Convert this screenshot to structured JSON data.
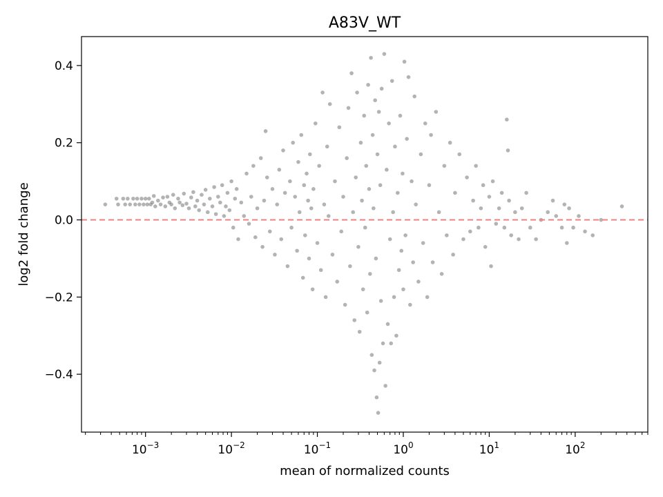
{
  "chart_data": {
    "type": "scatter",
    "title": "A83V_WT",
    "xlabel": "mean of normalized counts",
    "ylabel": "log2 fold change",
    "xscale": "log",
    "xlim": [
      0.00018,
      700
    ],
    "ylim": [
      -0.55,
      0.475
    ],
    "x_ticks": [
      {
        "value": 0.001,
        "base": "10",
        "exp": "−3"
      },
      {
        "value": 0.01,
        "base": "10",
        "exp": "−2"
      },
      {
        "value": 0.1,
        "base": "10",
        "exp": "−1"
      },
      {
        "value": 1,
        "base": "10",
        "exp": "0"
      },
      {
        "value": 10,
        "base": "10",
        "exp": "1"
      },
      {
        "value": 100,
        "base": "10",
        "exp": "2"
      }
    ],
    "y_ticks": [
      {
        "value": 0.4,
        "label": "0.4"
      },
      {
        "value": 0.2,
        "label": "0.2"
      },
      {
        "value": 0.0,
        "label": "0.0"
      },
      {
        "value": -0.2,
        "label": "−0.2"
      },
      {
        "value": -0.4,
        "label": "−0.4"
      }
    ],
    "reference_line": {
      "y": 0,
      "style": "dashed",
      "color": "#f08080"
    },
    "grid": false,
    "legend": "none",
    "point_color": "#808080",
    "point_opacity": 0.6,
    "points": [
      [
        0.00034,
        0.04
      ],
      [
        0.00046,
        0.055
      ],
      [
        0.00048,
        0.04
      ],
      [
        0.00055,
        0.055
      ],
      [
        0.00058,
        0.04
      ],
      [
        0.00062,
        0.055
      ],
      [
        0.00066,
        0.04
      ],
      [
        0.00072,
        0.055
      ],
      [
        0.00076,
        0.04
      ],
      [
        0.0008,
        0.055
      ],
      [
        0.00085,
        0.04
      ],
      [
        0.0009,
        0.055
      ],
      [
        0.00095,
        0.04
      ],
      [
        0.001,
        0.055
      ],
      [
        0.00105,
        0.04
      ],
      [
        0.0011,
        0.055
      ],
      [
        0.00115,
        0.04
      ],
      [
        0.0012,
        0.045
      ],
      [
        0.00125,
        0.062
      ],
      [
        0.0013,
        0.035
      ],
      [
        0.0014,
        0.05
      ],
      [
        0.0015,
        0.04
      ],
      [
        0.0016,
        0.058
      ],
      [
        0.0017,
        0.035
      ],
      [
        0.0018,
        0.06
      ],
      [
        0.0019,
        0.045
      ],
      [
        0.002,
        0.04
      ],
      [
        0.0021,
        0.065
      ],
      [
        0.0022,
        0.03
      ],
      [
        0.0024,
        0.055
      ],
      [
        0.0025,
        0.045
      ],
      [
        0.0027,
        0.038
      ],
      [
        0.0028,
        0.068
      ],
      [
        0.003,
        0.042
      ],
      [
        0.0032,
        0.03
      ],
      [
        0.0034,
        0.058
      ],
      [
        0.0036,
        0.072
      ],
      [
        0.0038,
        0.035
      ],
      [
        0.004,
        0.05
      ],
      [
        0.0042,
        0.025
      ],
      [
        0.0045,
        0.065
      ],
      [
        0.0048,
        0.04
      ],
      [
        0.005,
        0.078
      ],
      [
        0.0053,
        0.02
      ],
      [
        0.0056,
        0.055
      ],
      [
        0.006,
        0.035
      ],
      [
        0.0063,
        0.085
      ],
      [
        0.0066,
        0.015
      ],
      [
        0.007,
        0.06
      ],
      [
        0.0074,
        0.045
      ],
      [
        0.0078,
        0.09
      ],
      [
        0.0082,
        0.01
      ],
      [
        0.0086,
        0.035
      ],
      [
        0.009,
        0.07
      ],
      [
        0.0095,
        0.025
      ],
      [
        0.01,
        0.1
      ],
      [
        0.0105,
        -0.02
      ],
      [
        0.011,
        0.055
      ],
      [
        0.0115,
        0.08
      ],
      [
        0.012,
        -0.05
      ],
      [
        0.013,
        0.045
      ],
      [
        0.014,
        0.01
      ],
      [
        0.015,
        0.12
      ],
      [
        0.016,
        -0.01
      ],
      [
        0.017,
        0.06
      ],
      [
        0.018,
        0.14
      ],
      [
        0.019,
        -0.045
      ],
      [
        0.02,
        0.03
      ],
      [
        0.022,
        0.16
      ],
      [
        0.023,
        -0.07
      ],
      [
        0.024,
        0.05
      ],
      [
        0.025,
        0.23
      ],
      [
        0.026,
        0.11
      ],
      [
        0.028,
        -0.03
      ],
      [
        0.03,
        0.08
      ],
      [
        0.032,
        -0.09
      ],
      [
        0.034,
        0.04
      ],
      [
        0.036,
        0.13
      ],
      [
        0.038,
        -0.05
      ],
      [
        0.04,
        0.18
      ],
      [
        0.042,
        0.07
      ],
      [
        0.045,
        -0.12
      ],
      [
        0.048,
        0.1
      ],
      [
        0.05,
        -0.02
      ],
      [
        0.052,
        0.2
      ],
      [
        0.055,
        0.06
      ],
      [
        0.058,
        -0.08
      ],
      [
        0.06,
        0.15
      ],
      [
        0.062,
        0.02
      ],
      [
        0.065,
        0.22
      ],
      [
        0.068,
        -0.15
      ],
      [
        0.07,
        0.09
      ],
      [
        0.072,
        -0.04
      ],
      [
        0.075,
        0.12
      ],
      [
        0.078,
        0.05
      ],
      [
        0.08,
        -0.1
      ],
      [
        0.082,
        0.17
      ],
      [
        0.085,
        0.03
      ],
      [
        0.088,
        -0.18
      ],
      [
        0.09,
        0.08
      ],
      [
        0.095,
        0.25
      ],
      [
        0.1,
        -0.06
      ],
      [
        0.105,
        0.14
      ],
      [
        0.11,
        -0.13
      ],
      [
        0.115,
        0.33
      ],
      [
        0.12,
        0.04
      ],
      [
        0.125,
        -0.2
      ],
      [
        0.13,
        0.19
      ],
      [
        0.135,
        0.01
      ],
      [
        0.14,
        0.3
      ],
      [
        0.15,
        -0.09
      ],
      [
        0.16,
        0.1
      ],
      [
        0.17,
        -0.16
      ],
      [
        0.18,
        0.24
      ],
      [
        0.19,
        -0.03
      ],
      [
        0.2,
        0.06
      ],
      [
        0.21,
        -0.22
      ],
      [
        0.22,
        0.16
      ],
      [
        0.23,
        0.29
      ],
      [
        0.24,
        -0.12
      ],
      [
        0.25,
        0.38
      ],
      [
        0.26,
        0.02
      ],
      [
        0.27,
        -0.26
      ],
      [
        0.28,
        0.11
      ],
      [
        0.29,
        0.33
      ],
      [
        0.3,
        -0.07
      ],
      [
        0.31,
        -0.29
      ],
      [
        0.32,
        0.2
      ],
      [
        0.33,
        0.05
      ],
      [
        0.34,
        -0.18
      ],
      [
        0.35,
        0.27
      ],
      [
        0.36,
        -0.02
      ],
      [
        0.37,
        0.14
      ],
      [
        0.38,
        -0.24
      ],
      [
        0.39,
        0.35
      ],
      [
        0.4,
        0.08
      ],
      [
        0.41,
        -0.14
      ],
      [
        0.42,
        0.42
      ],
      [
        0.43,
        -0.35
      ],
      [
        0.44,
        0.22
      ],
      [
        0.45,
        0.03
      ],
      [
        0.46,
        -0.39
      ],
      [
        0.47,
        0.31
      ],
      [
        0.48,
        -0.1
      ],
      [
        0.49,
        -0.46
      ],
      [
        0.5,
        0.17
      ],
      [
        0.51,
        -0.5
      ],
      [
        0.52,
        0.28
      ],
      [
        0.53,
        -0.37
      ],
      [
        0.54,
        0.09
      ],
      [
        0.55,
        -0.21
      ],
      [
        0.56,
        0.34
      ],
      [
        0.58,
        -0.32
      ],
      [
        0.6,
        0.43
      ],
      [
        0.62,
        -0.43
      ],
      [
        0.64,
        0.13
      ],
      [
        0.66,
        -0.27
      ],
      [
        0.68,
        0.25
      ],
      [
        0.7,
        -0.05
      ],
      [
        0.72,
        -0.32
      ],
      [
        0.74,
        0.36
      ],
      [
        0.76,
        0.02
      ],
      [
        0.78,
        -0.2
      ],
      [
        0.8,
        0.19
      ],
      [
        0.83,
        -0.3
      ],
      [
        0.86,
        0.07
      ],
      [
        0.89,
        -0.13
      ],
      [
        0.92,
        0.27
      ],
      [
        0.95,
        -0.08
      ],
      [
        0.98,
        0.12
      ],
      [
        1.0,
        -0.18
      ],
      [
        1.03,
        0.41
      ],
      [
        1.06,
        -0.04
      ],
      [
        1.1,
        0.21
      ],
      [
        1.15,
        0.37
      ],
      [
        1.2,
        -0.22
      ],
      [
        1.25,
        0.1
      ],
      [
        1.3,
        -0.11
      ],
      [
        1.35,
        0.32
      ],
      [
        1.4,
        0.04
      ],
      [
        1.5,
        -0.16
      ],
      [
        1.6,
        0.17
      ],
      [
        1.7,
        -0.06
      ],
      [
        1.8,
        0.25
      ],
      [
        1.9,
        -0.2
      ],
      [
        2.0,
        0.09
      ],
      [
        2.1,
        0.22
      ],
      [
        2.2,
        -0.11
      ],
      [
        2.4,
        0.28
      ],
      [
        2.6,
        0.02
      ],
      [
        2.8,
        -0.14
      ],
      [
        3.0,
        0.14
      ],
      [
        3.2,
        -0.04
      ],
      [
        3.5,
        0.2
      ],
      [
        3.8,
        -0.09
      ],
      [
        4.0,
        0.07
      ],
      [
        4.5,
        0.17
      ],
      [
        5.0,
        -0.05
      ],
      [
        5.5,
        0.11
      ],
      [
        6.0,
        -0.03
      ],
      [
        6.5,
        0.05
      ],
      [
        7.0,
        0.14
      ],
      [
        7.5,
        -0.02
      ],
      [
        8.0,
        0.03
      ],
      [
        8.5,
        0.09
      ],
      [
        9.0,
        -0.07
      ],
      [
        10.0,
        0.06
      ],
      [
        10.5,
        -0.12
      ],
      [
        11.0,
        0.1
      ],
      [
        12.0,
        -0.01
      ],
      [
        13.0,
        0.03
      ],
      [
        14.0,
        0.07
      ],
      [
        15.0,
        -0.02
      ],
      [
        16.0,
        0.26
      ],
      [
        16.5,
        0.18
      ],
      [
        17.0,
        0.05
      ],
      [
        18.0,
        -0.04
      ],
      [
        20.0,
        0.02
      ],
      [
        22.0,
        -0.05
      ],
      [
        24.0,
        0.03
      ],
      [
        27.0,
        0.07
      ],
      [
        30.0,
        -0.02
      ],
      [
        35.0,
        -0.05
      ],
      [
        40.0,
        0.0
      ],
      [
        48.0,
        0.02
      ],
      [
        55.0,
        0.05
      ],
      [
        60.0,
        0.01
      ],
      [
        70.0,
        -0.02
      ],
      [
        75.0,
        0.04
      ],
      [
        80.0,
        -0.06
      ],
      [
        85.0,
        0.03
      ],
      [
        95.0,
        -0.02
      ],
      [
        110.0,
        0.01
      ],
      [
        130.0,
        -0.03
      ],
      [
        160.0,
        -0.04
      ],
      [
        200.0,
        0.0
      ],
      [
        350.0,
        0.035
      ]
    ]
  }
}
